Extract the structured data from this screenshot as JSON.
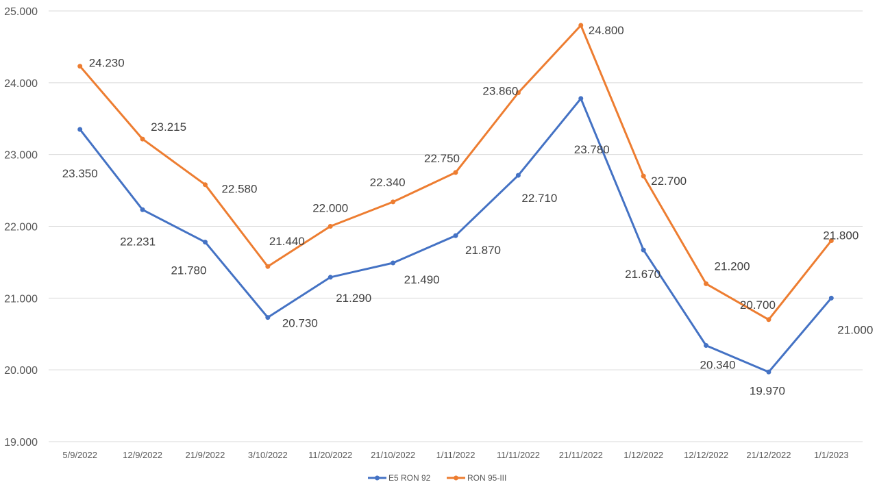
{
  "chart_data": {
    "type": "line",
    "title": "",
    "xlabel": "",
    "ylabel": "",
    "categories": [
      "5/9/2022",
      "12/9/2022",
      "21/9/2022",
      "3/10/2022",
      "11/20/2022",
      "21/10/2022",
      "1/11/2022",
      "11/11/2022",
      "21/11/2022",
      "1/12/2022",
      "12/12/2022",
      "21/12/2022",
      "1/1/2023"
    ],
    "ylim": [
      19000,
      25000
    ],
    "y_ticks": [
      19000,
      20000,
      21000,
      22000,
      23000,
      24000,
      25000
    ],
    "y_tick_labels": [
      "19.000",
      "20.000",
      "21.000",
      "22.000",
      "23.000",
      "24.000",
      "25.000"
    ],
    "grid": true,
    "legend_position": "bottom",
    "series": [
      {
        "name": "E5 RON 92",
        "color": "#4472C4",
        "values": [
          23350,
          22231,
          21780,
          20730,
          21290,
          21490,
          21870,
          22710,
          23780,
          21670,
          20340,
          19970,
          21000
        ],
        "labels": [
          "23.350",
          "22.231",
          "21.780",
          "20.730",
          "21.290",
          "21.490",
          "21.870",
          "22.710",
          "23.780",
          "21.670",
          "20.340",
          "19.970",
          "21.000"
        ]
      },
      {
        "name": "RON 95-III",
        "color": "#ED7D31",
        "values": [
          24230,
          23215,
          22580,
          21440,
          22000,
          22340,
          22750,
          23860,
          24800,
          22700,
          21200,
          20700,
          21800
        ],
        "labels": [
          "24.230",
          "23.215",
          "22.580",
          "21.440",
          "22.000",
          "22.340",
          "22.750",
          "23.860",
          "24.800",
          "22.700",
          "21.200",
          "20.700",
          "21.800"
        ]
      }
    ]
  }
}
